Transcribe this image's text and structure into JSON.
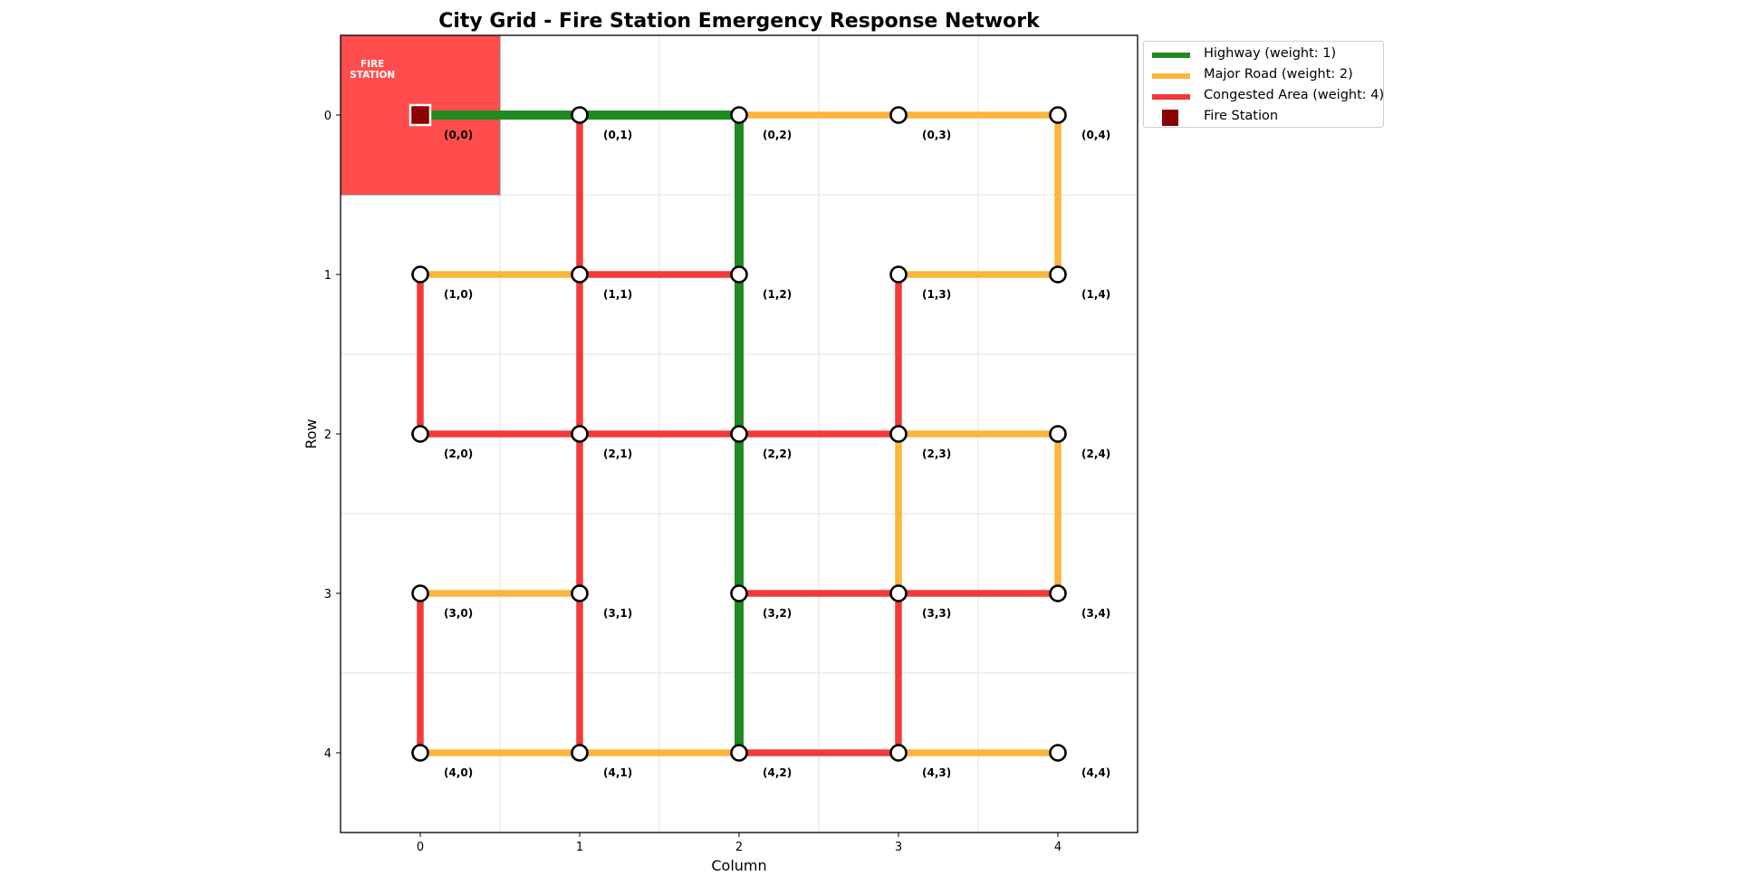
{
  "chart_data": {
    "type": "network",
    "title": "City Grid - Fire Station Emergency Response Network",
    "xlabel": "Column",
    "ylabel": "Row",
    "xlim": [
      -0.5,
      4.5
    ],
    "ylim": [
      4.5,
      -0.5
    ],
    "x_ticks": [
      "0",
      "1",
      "2",
      "3",
      "4"
    ],
    "y_ticks": [
      "0",
      "1",
      "2",
      "3",
      "4"
    ],
    "grid": true,
    "legend_position": "outside-top-right",
    "fire_station": {
      "label_line1": "FIRE",
      "label_line2": "STATION",
      "node": [
        0,
        0
      ],
      "zone_color": "#ff4d4d",
      "marker_color": "#8b0000"
    },
    "road_types": {
      "highway": {
        "weight": 1,
        "color": "#1f8a1f"
      },
      "major": {
        "weight": 2,
        "color": "#fbb53a"
      },
      "congested": {
        "weight": 4,
        "color": "#f23a3a"
      }
    },
    "legend": [
      {
        "label": "Highway (weight: 1)",
        "kind": "line",
        "color": "#1f8a1f"
      },
      {
        "label": "Major Road (weight: 2)",
        "kind": "line",
        "color": "#fbb53a"
      },
      {
        "label": "Congested Area (weight: 4)",
        "kind": "line",
        "color": "#f23a3a"
      },
      {
        "label": "Fire Station",
        "kind": "square",
        "color": "#8b0000"
      }
    ],
    "nodes": [
      {
        "row": 0,
        "col": 0,
        "label": "(0,0)"
      },
      {
        "row": 0,
        "col": 1,
        "label": "(0,1)"
      },
      {
        "row": 0,
        "col": 2,
        "label": "(0,2)"
      },
      {
        "row": 0,
        "col": 3,
        "label": "(0,3)"
      },
      {
        "row": 0,
        "col": 4,
        "label": "(0,4)"
      },
      {
        "row": 1,
        "col": 0,
        "label": "(1,0)"
      },
      {
        "row": 1,
        "col": 1,
        "label": "(1,1)"
      },
      {
        "row": 1,
        "col": 2,
        "label": "(1,2)"
      },
      {
        "row": 1,
        "col": 3,
        "label": "(1,3)"
      },
      {
        "row": 1,
        "col": 4,
        "label": "(1,4)"
      },
      {
        "row": 2,
        "col": 0,
        "label": "(2,0)"
      },
      {
        "row": 2,
        "col": 1,
        "label": "(2,1)"
      },
      {
        "row": 2,
        "col": 2,
        "label": "(2,2)"
      },
      {
        "row": 2,
        "col": 3,
        "label": "(2,3)"
      },
      {
        "row": 2,
        "col": 4,
        "label": "(2,4)"
      },
      {
        "row": 3,
        "col": 0,
        "label": "(3,0)"
      },
      {
        "row": 3,
        "col": 1,
        "label": "(3,1)"
      },
      {
        "row": 3,
        "col": 2,
        "label": "(3,2)"
      },
      {
        "row": 3,
        "col": 3,
        "label": "(3,3)"
      },
      {
        "row": 3,
        "col": 4,
        "label": "(3,4)"
      },
      {
        "row": 4,
        "col": 0,
        "label": "(4,0)"
      },
      {
        "row": 4,
        "col": 1,
        "label": "(4,1)"
      },
      {
        "row": 4,
        "col": 2,
        "label": "(4,2)"
      },
      {
        "row": 4,
        "col": 3,
        "label": "(4,3)"
      },
      {
        "row": 4,
        "col": 4,
        "label": "(4,4)"
      }
    ],
    "edges": [
      {
        "from": [
          0,
          0
        ],
        "to": [
          0,
          1
        ],
        "type": "highway"
      },
      {
        "from": [
          0,
          1
        ],
        "to": [
          0,
          2
        ],
        "type": "highway"
      },
      {
        "from": [
          0,
          2
        ],
        "to": [
          0,
          3
        ],
        "type": "major"
      },
      {
        "from": [
          0,
          3
        ],
        "to": [
          0,
          4
        ],
        "type": "major"
      },
      {
        "from": [
          0,
          4
        ],
        "to": [
          1,
          4
        ],
        "type": "major"
      },
      {
        "from": [
          0,
          1
        ],
        "to": [
          1,
          1
        ],
        "type": "congested"
      },
      {
        "from": [
          0,
          2
        ],
        "to": [
          1,
          2
        ],
        "type": "highway"
      },
      {
        "from": [
          1,
          0
        ],
        "to": [
          1,
          1
        ],
        "type": "major"
      },
      {
        "from": [
          1,
          1
        ],
        "to": [
          1,
          2
        ],
        "type": "congested"
      },
      {
        "from": [
          1,
          3
        ],
        "to": [
          1,
          4
        ],
        "type": "major"
      },
      {
        "from": [
          1,
          0
        ],
        "to": [
          2,
          0
        ],
        "type": "congested"
      },
      {
        "from": [
          1,
          1
        ],
        "to": [
          2,
          1
        ],
        "type": "congested"
      },
      {
        "from": [
          1,
          2
        ],
        "to": [
          2,
          2
        ],
        "type": "highway"
      },
      {
        "from": [
          1,
          3
        ],
        "to": [
          2,
          3
        ],
        "type": "congested"
      },
      {
        "from": [
          2,
          0
        ],
        "to": [
          2,
          1
        ],
        "type": "congested"
      },
      {
        "from": [
          2,
          1
        ],
        "to": [
          2,
          2
        ],
        "type": "congested"
      },
      {
        "from": [
          2,
          2
        ],
        "to": [
          2,
          3
        ],
        "type": "congested"
      },
      {
        "from": [
          2,
          3
        ],
        "to": [
          2,
          4
        ],
        "type": "major"
      },
      {
        "from": [
          2,
          1
        ],
        "to": [
          3,
          1
        ],
        "type": "congested"
      },
      {
        "from": [
          2,
          2
        ],
        "to": [
          3,
          2
        ],
        "type": "highway"
      },
      {
        "from": [
          2,
          3
        ],
        "to": [
          3,
          3
        ],
        "type": "major"
      },
      {
        "from": [
          2,
          4
        ],
        "to": [
          3,
          4
        ],
        "type": "major"
      },
      {
        "from": [
          3,
          0
        ],
        "to": [
          3,
          1
        ],
        "type": "major"
      },
      {
        "from": [
          3,
          2
        ],
        "to": [
          3,
          3
        ],
        "type": "congested"
      },
      {
        "from": [
          3,
          3
        ],
        "to": [
          3,
          4
        ],
        "type": "congested"
      },
      {
        "from": [
          3,
          0
        ],
        "to": [
          4,
          0
        ],
        "type": "congested"
      },
      {
        "from": [
          3,
          1
        ],
        "to": [
          4,
          1
        ],
        "type": "congested"
      },
      {
        "from": [
          3,
          2
        ],
        "to": [
          4,
          2
        ],
        "type": "highway"
      },
      {
        "from": [
          3,
          3
        ],
        "to": [
          4,
          3
        ],
        "type": "congested"
      },
      {
        "from": [
          4,
          0
        ],
        "to": [
          4,
          1
        ],
        "type": "major"
      },
      {
        "from": [
          4,
          1
        ],
        "to": [
          4,
          2
        ],
        "type": "major"
      },
      {
        "from": [
          4,
          2
        ],
        "to": [
          4,
          3
        ],
        "type": "congested"
      },
      {
        "from": [
          4,
          3
        ],
        "to": [
          4,
          4
        ],
        "type": "major"
      }
    ]
  }
}
